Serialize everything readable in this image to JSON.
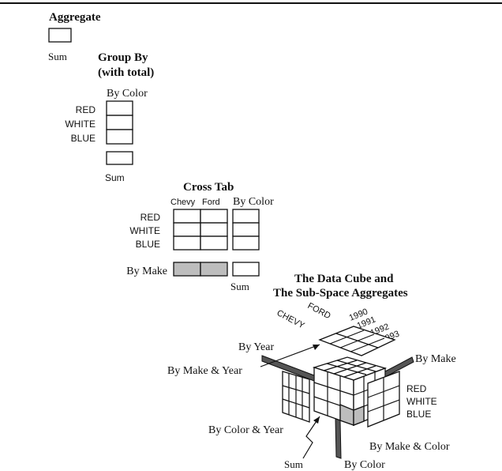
{
  "aggregate": {
    "title": "Aggregate",
    "sum_label": "Sum"
  },
  "group_by": {
    "title_line1": "Group By",
    "title_line2": "(with total)",
    "column_label": "By Color",
    "rows": [
      "RED",
      "WHITE",
      "BLUE"
    ],
    "sum_label": "Sum"
  },
  "cross_tab": {
    "title": "Cross Tab",
    "columns": [
      "Chevy",
      "Ford"
    ],
    "total_column_label": "By Color",
    "rows": [
      "RED",
      "WHITE",
      "BLUE"
    ],
    "by_make_label": "By Make",
    "sum_label": "Sum"
  },
  "data_cube": {
    "title_line1": "The Data Cube and",
    "title_line2": "The Sub-Space Aggregates",
    "makes": [
      "CHEVY",
      "FORD"
    ],
    "years": [
      "1990",
      "1991",
      "1992",
      "1993"
    ],
    "colors": [
      "RED",
      "WHITE",
      "BLUE"
    ],
    "labels": {
      "by_year": "By Year",
      "by_make_year": "By Make & Year",
      "by_make": "By Make",
      "by_color_year": "By Color & Year",
      "by_make_color": "By Make & Color",
      "sum": "Sum",
      "by_color": "By Color"
    }
  }
}
